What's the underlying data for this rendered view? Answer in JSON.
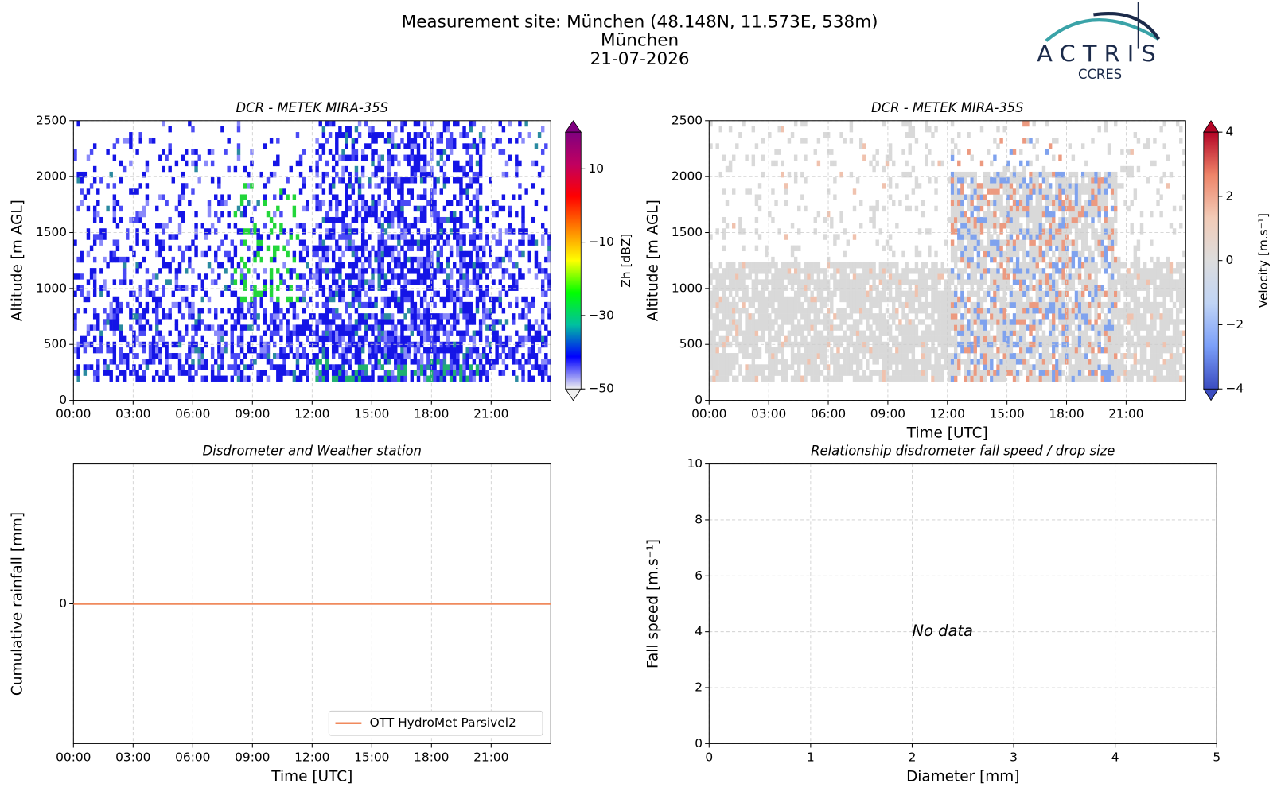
{
  "header": {
    "lines": [
      "Measurement site: München (48.148N, 11.573E, 538m)",
      "München",
      "21-07-2026"
    ],
    "logo": {
      "name": "ACTRIS",
      "sub": "CCRES"
    }
  },
  "chart_data": [
    {
      "type": "heatmap",
      "title": "DCR - METEK MIRA-35S",
      "ylabel": "Altitude [m AGL]",
      "xlim": [
        0,
        24
      ],
      "xticks": [
        {
          "value": 0,
          "label": "00:00"
        },
        {
          "value": 3,
          "label": "03:00"
        },
        {
          "value": 6,
          "label": "06:00"
        },
        {
          "value": 9,
          "label": "09:00"
        },
        {
          "value": 12,
          "label": "12:00"
        },
        {
          "value": 15,
          "label": "15:00"
        },
        {
          "value": 18,
          "label": "18:00"
        },
        {
          "value": 21,
          "label": "21:00"
        }
      ],
      "ylim": [
        0,
        2500
      ],
      "yticks": [
        0,
        500,
        1000,
        1500,
        2000,
        2500
      ],
      "grid": true,
      "colorbar": {
        "label": "Zh [dBZ]",
        "lim": [
          -50,
          20
        ],
        "ticks": [
          {
            "value": -50,
            "label": "−50"
          },
          {
            "value": -30,
            "label": "−30"
          },
          {
            "value": -10,
            "label": "−10"
          },
          10
        ],
        "colors": [
          "#f0f0f0",
          "#0000ff",
          "#00c0a0",
          "#00ff00",
          "#ffff00",
          "#ff8000",
          "#ff0000",
          "#c00060",
          "#800080"
        ]
      }
    },
    {
      "type": "heatmap",
      "title": "DCR - METEK MIRA-35S",
      "ylabel": "Altitude [m AGL]",
      "xlabel": "Time [UTC]",
      "xlim": [
        0,
        24
      ],
      "xticks": [
        {
          "value": 0,
          "label": "00:00"
        },
        {
          "value": 3,
          "label": "03:00"
        },
        {
          "value": 6,
          "label": "06:00"
        },
        {
          "value": 9,
          "label": "09:00"
        },
        {
          "value": 12,
          "label": "12:00"
        },
        {
          "value": 15,
          "label": "15:00"
        },
        {
          "value": 18,
          "label": "18:00"
        },
        {
          "value": 21,
          "label": "21:00"
        }
      ],
      "ylim": [
        0,
        2500
      ],
      "yticks": [
        0,
        500,
        1000,
        1500,
        2000,
        2500
      ],
      "grid": true,
      "colorbar": {
        "label": "Velocity [m.s⁻¹]",
        "lim": [
          -4,
          4
        ],
        "ticks": [
          {
            "value": -4,
            "label": "−4"
          },
          {
            "value": -2,
            "label": "−2"
          },
          0,
          2,
          4
        ],
        "colors": [
          "#3b4cc0",
          "#7b9ff9",
          "#c0d4f5",
          "#dddddd",
          "#f2cbb7",
          "#ee8468",
          "#b40426"
        ]
      }
    },
    {
      "type": "line",
      "title": "Disdrometer and Weather station",
      "ylabel": "Cumulative rainfall [mm]",
      "xlabel": "Time [UTC]",
      "xlim": [
        0,
        24
      ],
      "xticks": [
        {
          "value": 0,
          "label": "00:00"
        },
        {
          "value": 3,
          "label": "03:00"
        },
        {
          "value": 6,
          "label": "06:00"
        },
        {
          "value": 9,
          "label": "09:00"
        },
        {
          "value": 12,
          "label": "12:00"
        },
        {
          "value": 15,
          "label": "15:00"
        },
        {
          "value": 18,
          "label": "18:00"
        },
        {
          "value": 21,
          "label": "21:00"
        }
      ],
      "ylim": [
        -0.055,
        0.055
      ],
      "yticks": [
        0
      ],
      "grid": true,
      "legend": "lower right",
      "x": [
        0,
        24
      ],
      "series": [
        {
          "name": "OTT HydroMet Parsivel2",
          "color": "#f08a5d",
          "values": [
            0,
            0
          ]
        }
      ]
    },
    {
      "type": "scatter",
      "title": "Relationship disdrometer fall speed / drop size",
      "ylabel": "Fall speed [m.s⁻¹]",
      "xlabel": "Diameter [mm]",
      "xlim": [
        0,
        5
      ],
      "xticks": [
        0,
        1,
        2,
        3,
        4,
        5
      ],
      "ylim": [
        0,
        10
      ],
      "yticks": [
        0,
        2,
        4,
        6,
        8,
        10
      ],
      "grid": true,
      "annotation": "No data",
      "x": [],
      "values": []
    }
  ]
}
